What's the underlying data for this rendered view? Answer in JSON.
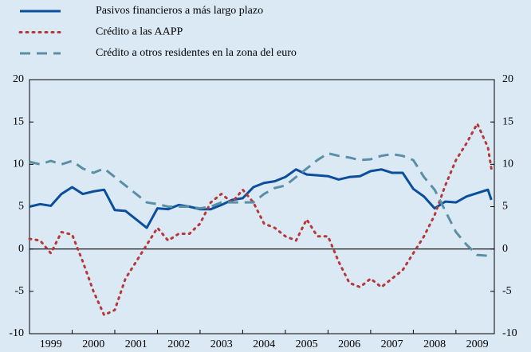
{
  "chart_data": {
    "type": "line",
    "x": [
      1999,
      1999.25,
      1999.5,
      1999.75,
      2000,
      2000.25,
      2000.5,
      2000.75,
      2001,
      2001.25,
      2001.5,
      2001.75,
      2002,
      2002.25,
      2002.5,
      2002.75,
      2003,
      2003.25,
      2003.5,
      2003.75,
      2004,
      2004.25,
      2004.5,
      2004.75,
      2005,
      2005.25,
      2005.5,
      2005.75,
      2006,
      2006.25,
      2006.5,
      2006.75,
      2007,
      2007.25,
      2007.5,
      2007.75,
      2008,
      2008.25,
      2008.5,
      2008.75,
      2009,
      2009.25,
      2009.5,
      2009.75,
      2009.83
    ],
    "series": [
      {
        "name": "Pasivos financieros a más largo plazo",
        "color": "#0b4f9c",
        "style": "solid",
        "values": [
          5.0,
          5.3,
          5.1,
          6.5,
          7.3,
          6.5,
          6.8,
          7.0,
          4.6,
          4.5,
          3.5,
          2.5,
          4.8,
          4.7,
          5.2,
          5.0,
          4.7,
          4.7,
          5.2,
          5.8,
          6.0,
          7.3,
          7.8,
          8.0,
          8.5,
          9.4,
          8.8,
          8.7,
          8.6,
          8.2,
          8.5,
          8.6,
          9.2,
          9.4,
          9.0,
          9.0,
          7.1,
          6.2,
          4.8,
          5.6,
          5.5,
          6.2,
          6.6,
          7.0,
          5.8
        ]
      },
      {
        "name": "Crédito a las AAPP",
        "color": "#b5383a",
        "style": "dotted",
        "values": [
          1.2,
          1.0,
          -0.5,
          2.0,
          1.7,
          -1.5,
          -5.0,
          -7.8,
          -7.2,
          -3.5,
          -1.5,
          0.5,
          2.5,
          1.0,
          1.8,
          1.8,
          3.0,
          5.5,
          6.5,
          5.5,
          7.0,
          5.5,
          3.0,
          2.5,
          1.5,
          1.0,
          3.5,
          1.5,
          1.5,
          -1.5,
          -4.0,
          -4.5,
          -3.5,
          -4.5,
          -3.5,
          -2.5,
          -0.5,
          1.5,
          4.0,
          7.5,
          10.5,
          12.5,
          14.8,
          12.0,
          9.5
        ]
      },
      {
        "name": "Crédito a otros residentes en la zona del euro",
        "color": "#5b8fa5",
        "style": "dashed",
        "values": [
          10.3,
          10.0,
          10.4,
          10.0,
          10.4,
          9.5,
          9.0,
          9.5,
          8.5,
          7.5,
          6.5,
          5.5,
          5.3,
          5.0,
          5.0,
          5.0,
          4.8,
          5.0,
          5.5,
          5.5,
          5.5,
          5.5,
          6.5,
          7.2,
          7.5,
          8.5,
          9.5,
          10.5,
          11.3,
          11.0,
          10.8,
          10.5,
          10.6,
          11.0,
          11.2,
          11.0,
          10.5,
          8.5,
          7.0,
          4.5,
          2.0,
          0.5,
          -0.7,
          -0.8,
          -0.5
        ]
      }
    ],
    "xlim": [
      1999,
      2009.9
    ],
    "xticks": [
      {
        "value": 1999.5,
        "label": "1999"
      },
      {
        "value": 2000.5,
        "label": "2000"
      },
      {
        "value": 2001.5,
        "label": "2001"
      },
      {
        "value": 2002.5,
        "label": "2002"
      },
      {
        "value": 2003.5,
        "label": "2003"
      },
      {
        "value": 2004.5,
        "label": "2004"
      },
      {
        "value": 2005.5,
        "label": "2005"
      },
      {
        "value": 2006.5,
        "label": "2006"
      },
      {
        "value": 2007.5,
        "label": "2007"
      },
      {
        "value": 2008.5,
        "label": "2008"
      },
      {
        "value": 2009.5,
        "label": "2009"
      }
    ],
    "ylim": [
      -10,
      20
    ],
    "yticks": [
      -10,
      -5,
      0,
      5,
      10,
      15,
      20
    ],
    "y2lim": [
      -10,
      20
    ],
    "y2ticks": [
      -10,
      -5,
      0,
      5,
      10,
      15,
      20
    ]
  }
}
